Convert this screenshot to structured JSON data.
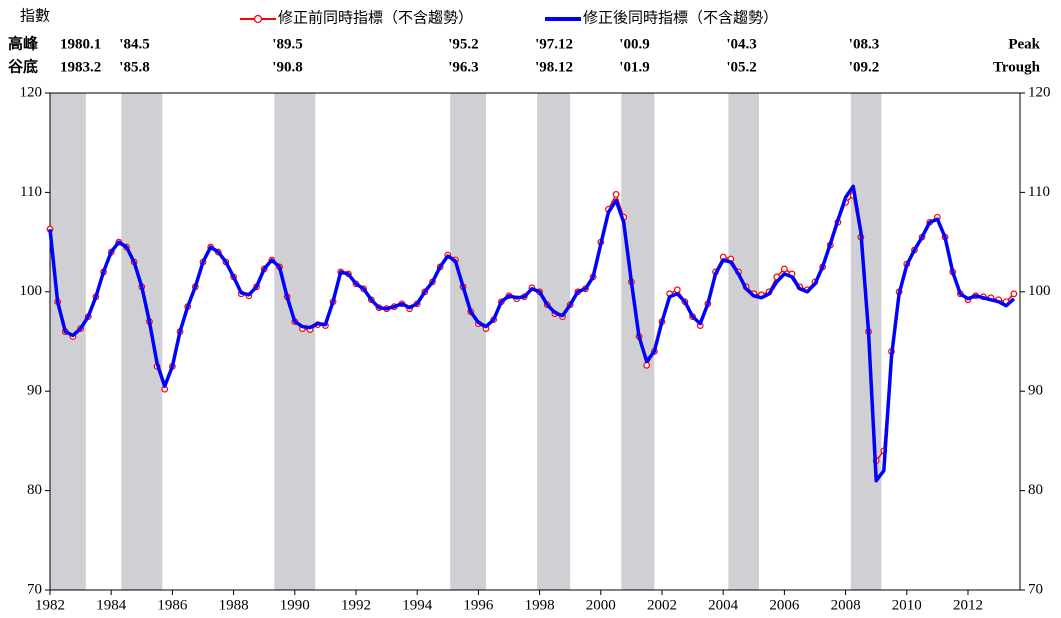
{
  "chart_data": {
    "type": "line",
    "y_label": "指數",
    "peak_label_cn": "高峰",
    "trough_label_cn": "谷底",
    "peak_label_en": "Peak",
    "trough_label_en": "Trough",
    "peaks": [
      "1980.1",
      "'84.5",
      "'89.5",
      "'95.2",
      "'97.12",
      "'00.9",
      "'04.3",
      "'08.3"
    ],
    "troughs": [
      "1983.2",
      "'85.8",
      "'90.8",
      "'96.3",
      "'98.12",
      "'01.9",
      "'05.2",
      "'09.2"
    ],
    "shaded_periods": [
      [
        1982,
        1983.17
      ],
      [
        1984.33,
        1985.67
      ],
      [
        1989.33,
        1990.67
      ],
      [
        1995.08,
        1996.25
      ],
      [
        1997.92,
        1999.0
      ],
      [
        2000.67,
        2001.75
      ],
      [
        2004.17,
        2005.17
      ],
      [
        2008.17,
        2009.17
      ]
    ],
    "shade_color": "#d0cfd4",
    "xlim": [
      1982,
      2013.7
    ],
    "xticks": [
      1982,
      1984,
      1986,
      1988,
      1990,
      1992,
      1994,
      1996,
      1998,
      2000,
      2002,
      2004,
      2006,
      2008,
      2010,
      2012
    ],
    "ylim": [
      70,
      120
    ],
    "yticks": [
      70,
      80,
      90,
      100,
      110,
      120
    ],
    "x": [
      1982,
      1982.25,
      1982.5,
      1982.75,
      1983,
      1983.25,
      1983.5,
      1983.75,
      1984,
      1984.25,
      1984.5,
      1984.75,
      1985,
      1985.25,
      1985.5,
      1985.75,
      1986,
      1986.25,
      1986.5,
      1986.75,
      1987,
      1987.25,
      1987.5,
      1987.75,
      1988,
      1988.25,
      1988.5,
      1988.75,
      1989,
      1989.25,
      1989.5,
      1989.75,
      1990,
      1990.25,
      1990.5,
      1990.75,
      1991,
      1991.25,
      1991.5,
      1991.75,
      1992,
      1992.25,
      1992.5,
      1992.75,
      1993,
      1993.25,
      1993.5,
      1993.75,
      1994,
      1994.25,
      1994.5,
      1994.75,
      1995,
      1995.25,
      1995.5,
      1995.75,
      1996,
      1996.25,
      1996.5,
      1996.75,
      1997,
      1997.25,
      1997.5,
      1997.75,
      1998,
      1998.25,
      1998.5,
      1998.75,
      1999,
      1999.25,
      1999.5,
      1999.75,
      2000,
      2000.25,
      2000.5,
      2000.75,
      2001,
      2001.25,
      2001.5,
      2001.75,
      2002,
      2002.25,
      2002.5,
      2002.75,
      2003,
      2003.25,
      2003.5,
      2003.75,
      2004,
      2004.25,
      2004.5,
      2004.75,
      2005,
      2005.25,
      2005.5,
      2005.75,
      2006,
      2006.25,
      2006.5,
      2006.75,
      2007,
      2007.25,
      2007.5,
      2007.75,
      2008,
      2008.25,
      2008.5,
      2008.75,
      2009,
      2009.25,
      2009.5,
      2009.75,
      2010,
      2010.25,
      2010.5,
      2010.75,
      2011,
      2011.25,
      2011.5,
      2011.75,
      2012,
      2012.25,
      2012.5,
      2012.75,
      2013,
      2013.25,
      2013.5
    ],
    "series": [
      {
        "name": "修正前同時指標（不含趨勢）",
        "color": "#ff0000",
        "markers": true,
        "values": [
          106.3,
          99,
          96,
          95.5,
          96.3,
          97.5,
          99.5,
          102,
          104,
          105,
          104.5,
          103,
          100.5,
          97,
          92.5,
          90.2,
          92.5,
          96,
          98.5,
          100.5,
          103,
          104.5,
          104,
          103,
          101.5,
          99.8,
          99.6,
          100.5,
          102.3,
          103.2,
          102.5,
          99.5,
          97,
          96.3,
          96.2,
          96.7,
          96.6,
          99,
          102,
          101.8,
          100.8,
          100.3,
          99.2,
          98.4,
          98.3,
          98.5,
          98.8,
          98.3,
          98.8,
          100,
          101,
          102.5,
          103.7,
          103.2,
          100.5,
          98,
          96.8,
          96.3,
          97.2,
          99,
          99.6,
          99.3,
          99.5,
          100.4,
          100,
          98.7,
          97.8,
          97.5,
          98.7,
          100,
          100.3,
          101.5,
          105,
          108.3,
          109.8,
          107.5,
          101,
          95.5,
          92.6,
          94,
          97,
          99.8,
          100.2,
          99,
          97.5,
          96.6,
          98.8,
          102,
          103.5,
          103.3,
          102,
          100.5,
          99.8,
          99.7,
          100,
          101.5,
          102.3,
          101.8,
          100.5,
          100.2,
          101,
          102.5,
          104.7,
          107,
          109,
          109.7,
          105.5,
          96,
          83,
          84,
          94,
          100,
          102.8,
          104.2,
          105.5,
          107,
          107.5,
          105.5,
          102,
          99.8,
          99.2,
          99.6,
          99.5,
          99.4,
          99.2,
          99,
          99.8
        ]
      },
      {
        "name": "修正後同時指標（不含趨勢）",
        "color": "#0000ff",
        "markers": false,
        "values": [
          106.3,
          99,
          96,
          95.6,
          96.3,
          97.5,
          99.5,
          102,
          104,
          105,
          104.5,
          103,
          100.5,
          97,
          92.8,
          90.5,
          92.5,
          96,
          98.5,
          100.5,
          103,
          104.5,
          104,
          103,
          101.5,
          99.9,
          99.7,
          100.5,
          102.3,
          103.2,
          102.5,
          99.5,
          97,
          96.5,
          96.4,
          96.8,
          96.7,
          99,
          102,
          101.8,
          100.8,
          100.3,
          99.2,
          98.4,
          98.3,
          98.5,
          98.8,
          98.4,
          98.8,
          100,
          101,
          102.5,
          103.6,
          103.1,
          100.5,
          98,
          96.9,
          96.5,
          97.2,
          99,
          99.6,
          99.4,
          99.5,
          100.3,
          100,
          98.7,
          97.9,
          97.6,
          98.7,
          100,
          100.3,
          101.5,
          104.8,
          108,
          109.2,
          107,
          101,
          95.5,
          93,
          94,
          97,
          99.5,
          99.8,
          99,
          97.5,
          96.8,
          98.8,
          101.8,
          103.2,
          103,
          101.8,
          100.3,
          99.6,
          99.4,
          99.8,
          101,
          101.8,
          101.5,
          100.3,
          100,
          100.8,
          102.5,
          104.8,
          107.2,
          109.5,
          110.6,
          106,
          96,
          81,
          82,
          93.5,
          99.8,
          102.7,
          104.2,
          105.5,
          107,
          107.3,
          105.5,
          102,
          99.8,
          99.3,
          99.6,
          99.4,
          99.2,
          99,
          98.6,
          99.3
        ]
      }
    ]
  }
}
